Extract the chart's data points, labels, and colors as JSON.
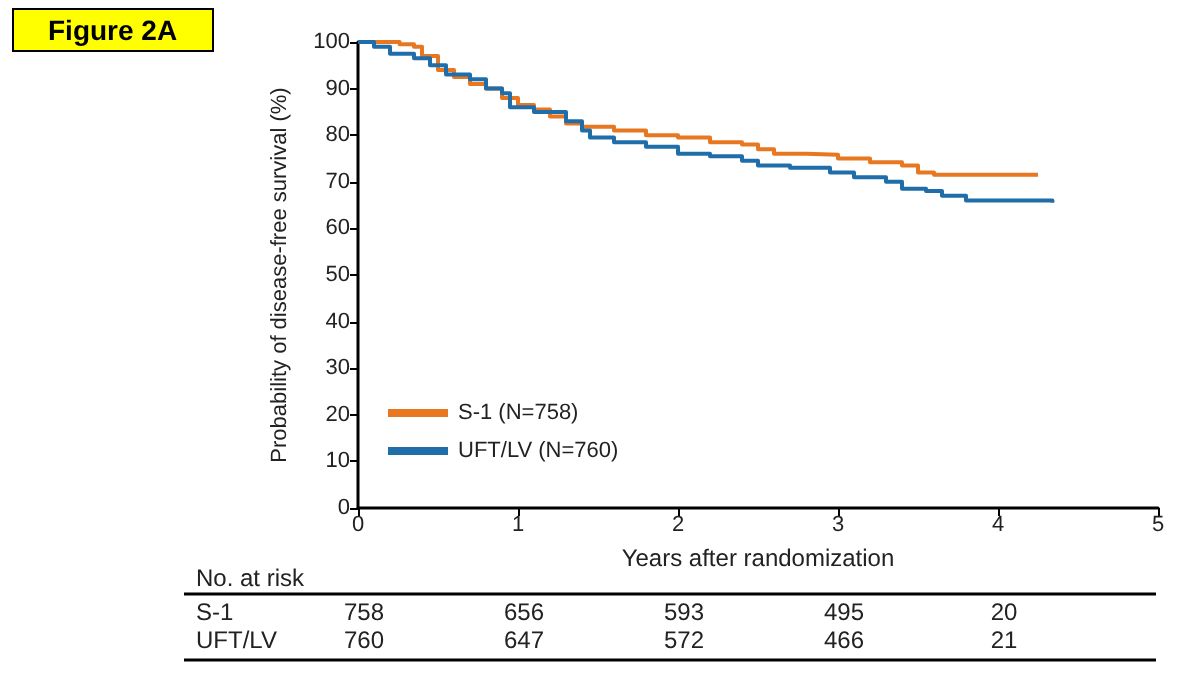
{
  "chart_data": {
    "type": "step",
    "title": "Figure 2A",
    "xlabel": "Years after randomization",
    "ylabel": "Probability of disease-free survival (%)",
    "xlim": [
      0,
      5
    ],
    "xticks": [
      0,
      1,
      2,
      3,
      4,
      5
    ],
    "ylim": [
      0,
      100
    ],
    "yticks": [
      0,
      10,
      20,
      30,
      40,
      50,
      60,
      70,
      80,
      90,
      100
    ],
    "grid": false,
    "legend": "bottom left",
    "marker": "none",
    "line_style": "solid",
    "series": [
      {
        "name": "S-1 (N=758)",
        "color": "#e87722",
        "x": [
          0,
          0.26,
          0.35,
          0.4,
          0.5,
          0.6,
          0.7,
          0.8,
          0.9,
          1.0,
          1.1,
          1.2,
          1.3,
          1.4,
          1.6,
          1.8,
          2.0,
          2.2,
          2.4,
          2.5,
          2.6,
          2.8,
          3.0,
          3.2,
          3.4,
          3.5,
          3.6,
          3.8,
          4.25
        ],
        "values": [
          100,
          99.5,
          99,
          97,
          94,
          92.5,
          91,
          90,
          88,
          86.5,
          85.5,
          84,
          82.5,
          81.8,
          81,
          80,
          79.5,
          78.5,
          78,
          77,
          76,
          75.8,
          75,
          74.2,
          73.5,
          72,
          71.5,
          71.5,
          71.5
        ]
      },
      {
        "name": "UFT/LV (N=760)",
        "color": "#1f6eaa",
        "x": [
          0,
          0.1,
          0.2,
          0.35,
          0.45,
          0.55,
          0.7,
          0.8,
          0.9,
          0.95,
          1.1,
          1.3,
          1.4,
          1.45,
          1.6,
          1.8,
          2.0,
          2.2,
          2.4,
          2.5,
          2.7,
          2.9,
          2.95,
          3.1,
          3.3,
          3.4,
          3.55,
          3.65,
          3.8,
          4.34
        ],
        "values": [
          100,
          99,
          97.5,
          96.5,
          95,
          93,
          92,
          90,
          89,
          86,
          85,
          83,
          81,
          79.5,
          78.5,
          77.5,
          76,
          75.5,
          74.5,
          73.5,
          73,
          73,
          72,
          71,
          70,
          68.5,
          68,
          67,
          66,
          65.5
        ]
      }
    ],
    "annotations": [
      "No. at risk",
      "S-1",
      "758",
      "656",
      "593",
      "495",
      "20",
      "UFT/LV",
      "760",
      "647",
      "572",
      "466",
      "21"
    ]
  }
}
